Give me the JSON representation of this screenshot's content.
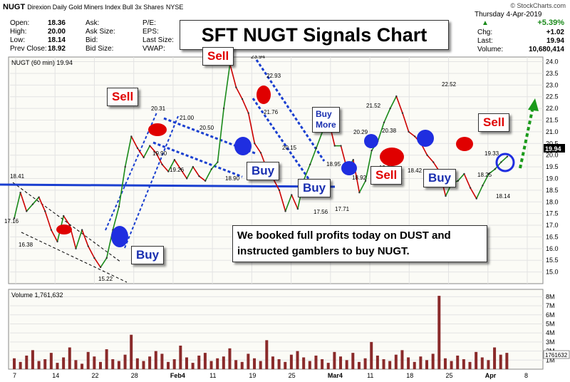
{
  "header": {
    "symbol": "NUGT",
    "description": "Direxion Daily Gold Miners Index Bull 3x Shares",
    "exchange": "NYSE",
    "source": "© StockCharts.com",
    "quote": {
      "open_label": "Open:",
      "open": "18.36",
      "high_label": "High:",
      "high": "20.00",
      "low_label": "Low:",
      "low": "18.14",
      "prev_label": "Prev Close:",
      "prev": "18.92",
      "ask_label": "Ask:",
      "asksize_label": "Ask Size:",
      "bid_label": "Bid:",
      "bidsize_label": "Bid Size:",
      "pe_label": "P/E:",
      "eps_label": "EPS:",
      "lastsize_label": "Last Size:",
      "vwap_label": "VWAP:"
    },
    "right": {
      "date": "Thursday  4-Apr-2019",
      "pct": "+5.39%",
      "chg_label": "Chg:",
      "chg": "+1.02",
      "last_label": "Last:",
      "last": "19.94",
      "vol_label": "Volume:",
      "vol": "10,680,414"
    },
    "series_label": "NUGT (60 min) 19.94",
    "volume_label": "Volume 1,761,632"
  },
  "annotations": {
    "title": "SFT NUGT Signals Chart",
    "note_line1": "We booked full profits today on DUST and",
    "note_line2": "instructed gamblers to buy NUGT.",
    "sell": "Sell",
    "buy": "Buy",
    "buy_more_1": "Buy",
    "buy_more_2": "More"
  },
  "colors": {
    "up": "#1a8a1a",
    "down": "#cc0000",
    "sell_marker": "#e00000",
    "buy_marker": "#1f2ee0",
    "trend": "#1a3fd0"
  },
  "chart_data": {
    "type": "line",
    "title": "NUGT (60 min) 19.94",
    "ylabel": "",
    "ylim": [
      14.5,
      24.2
    ],
    "y_ticks": [
      "24.0",
      "23.5",
      "23.0",
      "22.5",
      "22.0",
      "21.5",
      "21.0",
      "20.5",
      "20.0",
      "19.5",
      "19.0",
      "18.5",
      "18.0",
      "17.5",
      "17.0",
      "16.5",
      "16.0",
      "15.5",
      "15.0"
    ],
    "x_ticks": [
      "7",
      "14",
      "22",
      "28",
      "Feb4",
      "11",
      "19",
      "25",
      "Mar4",
      "11",
      "18",
      "25",
      "Apr",
      "8"
    ],
    "last_value_tag": "19.94",
    "series": [
      {
        "name": "NUGT",
        "x": [
          0,
          3,
          6,
          9,
          12,
          15,
          18,
          21,
          24,
          27,
          30,
          33,
          36,
          39,
          42,
          45,
          48,
          51,
          54,
          57,
          60,
          63,
          66,
          69,
          72,
          75,
          78,
          81,
          84,
          87,
          90,
          93,
          96,
          99,
          102,
          105,
          108,
          111,
          114,
          117,
          120,
          123,
          126,
          129,
          132,
          135,
          138,
          141,
          144,
          147,
          150,
          153,
          156,
          159,
          162,
          165,
          168,
          171,
          174,
          177,
          180,
          183,
          186,
          189,
          192,
          195,
          198,
          201,
          204,
          207,
          210,
          213,
          216,
          219,
          222,
          225,
          228,
          231,
          234,
          237,
          240
        ],
        "y": [
          17.3,
          18.4,
          17.6,
          17.9,
          18.2,
          17.6,
          16.8,
          16.3,
          17.4,
          17.0,
          16.0,
          16.8,
          16.1,
          15.6,
          15.2,
          15.6,
          16.8,
          17.8,
          19.5,
          20.8,
          20.3,
          19.9,
          20.4,
          20.1,
          19.6,
          19.3,
          19.8,
          19.4,
          19.0,
          19.5,
          19.1,
          18.9,
          19.4,
          19.7,
          22.0,
          23.9,
          22.9,
          22.4,
          21.8,
          20.5,
          20.1,
          19.4,
          19.0,
          18.5,
          17.6,
          18.3,
          17.7,
          18.95,
          19.6,
          20.3,
          21.0,
          21.5,
          20.4,
          20.4,
          19.4,
          19.8,
          18.4,
          18.9,
          20.2,
          20.6,
          21.4,
          22.0,
          22.52,
          21.8,
          21.0,
          20.8,
          20.5,
          20.0,
          19.7,
          19.3,
          18.25,
          18.8,
          18.9,
          19.2,
          18.6,
          18.14,
          18.7,
          19.2,
          19.4,
          19.7,
          19.94
        ]
      }
    ],
    "price_labels": [
      "18.41",
      "17.16",
      "16.38",
      "15.22",
      "20.31",
      "21.00",
      "20.50",
      "19.90",
      "19.26",
      "18.90",
      "23.94",
      "22.93",
      "21.76",
      "20.15",
      "18.95",
      "18.92",
      "17.56",
      "17.71",
      "20.29",
      "21.52",
      "20.38",
      "19.37",
      "18.42",
      "22.52",
      "19.33",
      "18.25",
      "18.14"
    ],
    "volume": {
      "name": "Volume",
      "value": "1,761,632",
      "y_ticks": [
        "8M",
        "7M",
        "6M",
        "5M",
        "4M",
        "3M",
        "2M",
        "1M"
      ],
      "last_tag": "1761632",
      "bars": [
        1.2,
        0.8,
        1.5,
        2.1,
        0.9,
        1.1,
        1.8,
        0.7,
        1.3,
        2.4,
        1.0,
        0.6,
        1.9,
        1.4,
        0.8,
        2.2,
        1.1,
        0.9,
        1.6,
        3.8,
        1.2,
        0.9,
        1.4,
        2.0,
        1.7,
        0.8,
        1.1,
        2.6,
        1.3,
        0.7,
        1.5,
        1.8,
        0.9,
        1.2,
        1.4,
        2.3,
        1.0,
        0.8,
        1.7,
        1.2,
        0.9,
        3.2,
        1.4,
        1.1,
        0.8,
        1.6,
        2.0,
        1.3,
        0.9,
        1.5,
        1.1,
        0.7,
        1.9,
        1.4,
        1.0,
        1.8,
        0.8,
        1.2,
        3.0,
        1.5,
        1.1,
        0.9,
        1.6,
        2.1,
        1.3,
        0.8,
        1.4,
        1.0,
        1.7,
        8.1,
        1.2,
        0.9,
        1.5,
        1.1,
        0.8,
        1.9,
        1.3,
        1.0,
        2.4,
        1.6,
        1.8
      ]
    }
  }
}
